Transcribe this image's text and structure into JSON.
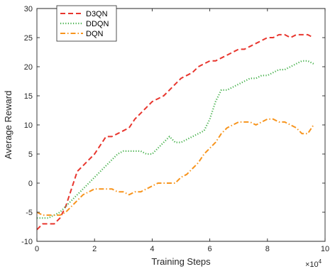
{
  "chart_data": {
    "type": "line",
    "xlabel": "Training Steps",
    "ylabel": "Average Reward",
    "x_multiplier_label": "×10",
    "x_multiplier_exp": "4",
    "xlim": [
      0,
      10
    ],
    "ylim": [
      -10,
      30
    ],
    "xticks": [
      0,
      2,
      4,
      6,
      8,
      10
    ],
    "yticks": [
      -10,
      -5,
      0,
      5,
      10,
      15,
      20,
      25,
      30
    ],
    "grid": false,
    "legend_position": "top-left",
    "series": [
      {
        "name": "D3QN",
        "color": "#e8362e",
        "style": "dashed",
        "x": [
          0,
          0.2,
          0.4,
          0.6,
          0.8,
          1.0,
          1.2,
          1.4,
          1.6,
          1.8,
          2.0,
          2.2,
          2.4,
          2.6,
          2.8,
          3.0,
          3.2,
          3.4,
          3.6,
          3.8,
          4.0,
          4.2,
          4.4,
          4.6,
          4.8,
          5.0,
          5.2,
          5.4,
          5.6,
          5.8,
          6.0,
          6.2,
          6.4,
          6.6,
          6.8,
          7.0,
          7.2,
          7.4,
          7.6,
          7.8,
          8.0,
          8.2,
          8.4,
          8.6,
          8.8,
          9.0,
          9.2,
          9.4,
          9.6
        ],
        "values": [
          -8,
          -7,
          -7,
          -7,
          -6,
          -4,
          -1,
          2,
          3,
          4,
          5,
          6.5,
          8,
          8,
          8.5,
          9,
          9.5,
          11,
          12,
          13,
          14,
          14.5,
          15,
          16,
          17,
          18,
          18.5,
          19,
          20,
          20.5,
          21,
          21,
          21.5,
          22,
          22.5,
          23,
          23,
          23.5,
          24,
          24.5,
          25,
          25,
          25.5,
          25.5,
          25,
          25.5,
          25.5,
          25.5,
          25
        ]
      },
      {
        "name": "DDQN",
        "color": "#43b049",
        "style": "dotted",
        "x": [
          0,
          0.2,
          0.4,
          0.6,
          0.8,
          1.0,
          1.2,
          1.4,
          1.6,
          1.8,
          2.0,
          2.2,
          2.4,
          2.6,
          2.8,
          3.0,
          3.2,
          3.4,
          3.6,
          3.8,
          4.0,
          4.2,
          4.4,
          4.6,
          4.8,
          5.0,
          5.2,
          5.4,
          5.6,
          5.8,
          6.0,
          6.2,
          6.4,
          6.6,
          6.8,
          7.0,
          7.2,
          7.4,
          7.6,
          7.8,
          8.0,
          8.2,
          8.4,
          8.6,
          8.8,
          9.0,
          9.2,
          9.4,
          9.6
        ],
        "values": [
          -6,
          -6,
          -6,
          -5.5,
          -5,
          -4,
          -3,
          -2,
          -1,
          0,
          1,
          2,
          3,
          4,
          5,
          5.5,
          5.5,
          5.5,
          5.5,
          5,
          5,
          6,
          7,
          8,
          7,
          7,
          7.5,
          8,
          8.5,
          9,
          11,
          14,
          16,
          16,
          16.5,
          17,
          17.5,
          18,
          18,
          18.5,
          18.5,
          19,
          19.5,
          19.5,
          20,
          20.5,
          21,
          21,
          20.5
        ]
      },
      {
        "name": "DQN",
        "color": "#f7941d",
        "style": "dashdot",
        "x": [
          0,
          0.2,
          0.4,
          0.6,
          0.8,
          1.0,
          1.2,
          1.4,
          1.6,
          1.8,
          2.0,
          2.2,
          2.4,
          2.6,
          2.8,
          3.0,
          3.2,
          3.4,
          3.6,
          3.8,
          4.0,
          4.2,
          4.4,
          4.6,
          4.8,
          5.0,
          5.2,
          5.4,
          5.6,
          5.8,
          6.0,
          6.2,
          6.4,
          6.6,
          6.8,
          7.0,
          7.2,
          7.4,
          7.6,
          7.8,
          8.0,
          8.2,
          8.4,
          8.6,
          8.8,
          9.0,
          9.2,
          9.4,
          9.6
        ],
        "values": [
          -5,
          -5.5,
          -5.5,
          -5.5,
          -5.5,
          -5,
          -4,
          -3,
          -2,
          -1.5,
          -1,
          -1,
          -1,
          -1,
          -1.5,
          -1.5,
          -2,
          -1.5,
          -1.5,
          -1,
          -0.5,
          0,
          0,
          0,
          0,
          1,
          1.5,
          2.5,
          3.5,
          5,
          6,
          7,
          8.5,
          9.5,
          10,
          10.5,
          10.5,
          10.5,
          10,
          10.5,
          11,
          11,
          10.5,
          10.5,
          10,
          9.5,
          8.5,
          8.5,
          10
        ]
      }
    ]
  }
}
